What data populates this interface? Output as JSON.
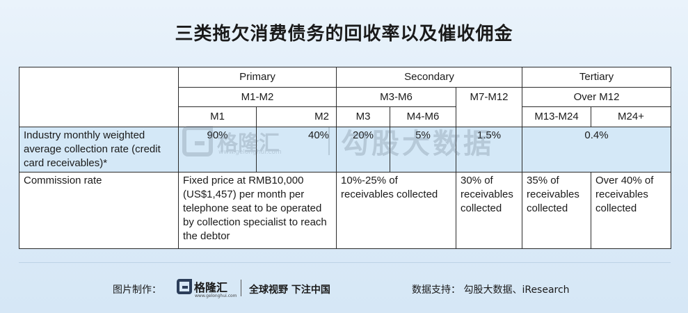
{
  "title": "三类拖欠消费债务的回收率以及催收佣金",
  "table": {
    "tiers": [
      "Primary",
      "Secondary",
      "Tertiary"
    ],
    "periods": [
      "M1-M2",
      "M3-M6",
      "M7-M12",
      "Over M12"
    ],
    "months": [
      "M1",
      "M2",
      "M3",
      "M4-M6",
      "M13-M24",
      "M24+"
    ],
    "rows": {
      "collection_rate": {
        "label": "Industry monthly weighted average collection rate (credit card receivables)*",
        "values": [
          "90%",
          "40%",
          "20%",
          "5%",
          "1.5%",
          "0.4%"
        ]
      },
      "commission_rate": {
        "label": "Commission rate",
        "values": [
          "Fixed price at RMB10,000 (US$1,457) per month per telephone seat to be operated by collection specialist to reach the debtor",
          "10%-25% of receivables collected",
          "30% of receivables collected",
          "35% of receivables collected",
          "Over 40% of receivables collected"
        ]
      }
    }
  },
  "watermark": {
    "logo_name": "格隆汇",
    "logo_url": "www.gelonghui.com",
    "brand": "勾股大数据"
  },
  "footer": {
    "credit_label": "图片制作：",
    "logo_name": "格隆汇",
    "logo_url": "www.gelonghui.com",
    "slogan": "全球视野 下注中国",
    "source": "数据支持： 勾股大数据、iResearch"
  },
  "colors": {
    "highlight_row": "#d4e8f7",
    "background": "#e3eef9",
    "border": "#2a2a2a"
  },
  "icons": [
    "gelonghui-logo-icon"
  ]
}
